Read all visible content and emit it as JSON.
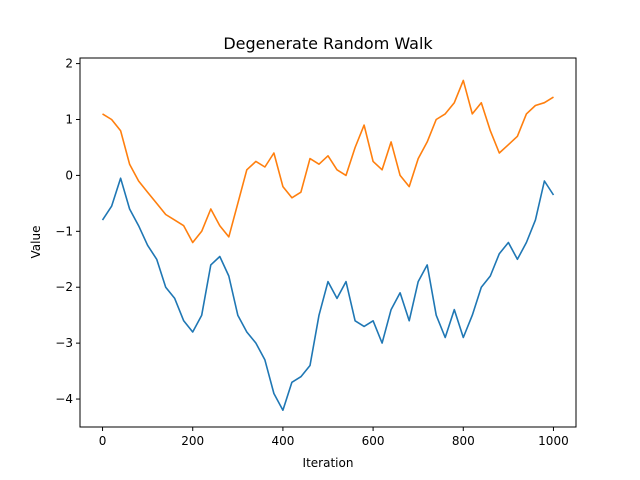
{
  "chart_data": {
    "type": "line",
    "title": "Degenerate Random Walk",
    "xlabel": "Iteration",
    "ylabel": "Value",
    "xlim": [
      -50,
      1050
    ],
    "ylim": [
      -4.5,
      2.1
    ],
    "xticks": [
      0,
      200,
      400,
      600,
      800,
      1000
    ],
    "xtick_labels": [
      "0",
      "200",
      "400",
      "600",
      "800",
      "1000"
    ],
    "yticks": [
      -4,
      -3,
      -2,
      -1,
      0,
      1,
      2
    ],
    "ytick_labels": [
      "−4",
      "−3",
      "−2",
      "−1",
      "0",
      "1",
      "2"
    ],
    "grid": false,
    "legend": "none",
    "series": [
      {
        "color": "#1f77b4",
        "x": [
          0,
          20,
          40,
          60,
          80,
          100,
          120,
          140,
          160,
          180,
          200,
          220,
          240,
          260,
          280,
          300,
          320,
          340,
          360,
          380,
          400,
          420,
          440,
          460,
          480,
          500,
          520,
          540,
          560,
          580,
          600,
          620,
          640,
          660,
          680,
          700,
          720,
          740,
          760,
          780,
          800,
          820,
          840,
          860,
          880,
          900,
          920,
          940,
          960,
          980,
          1000
        ],
        "y": [
          -0.8,
          -0.55,
          -0.05,
          -0.6,
          -0.9,
          -1.25,
          -1.5,
          -2.0,
          -2.2,
          -2.6,
          -2.8,
          -2.5,
          -1.6,
          -1.45,
          -1.8,
          -2.5,
          -2.8,
          -3.0,
          -3.3,
          -3.9,
          -4.2,
          -3.7,
          -3.6,
          -3.4,
          -2.5,
          -1.9,
          -2.2,
          -1.9,
          -2.6,
          -2.7,
          -2.6,
          -3.0,
          -2.4,
          -2.1,
          -2.6,
          -1.9,
          -1.6,
          -2.5,
          -2.9,
          -2.4,
          -2.9,
          -2.5,
          -2.0,
          -1.8,
          -1.4,
          -1.2,
          -1.5,
          -1.2,
          -0.8,
          -0.1,
          -0.35
        ]
      },
      {
        "color": "#ff7f0e",
        "x": [
          0,
          20,
          40,
          60,
          80,
          100,
          120,
          140,
          160,
          180,
          200,
          220,
          240,
          260,
          280,
          300,
          320,
          340,
          360,
          380,
          400,
          420,
          440,
          460,
          480,
          500,
          520,
          540,
          560,
          580,
          600,
          620,
          640,
          660,
          680,
          700,
          720,
          740,
          760,
          780,
          800,
          820,
          840,
          860,
          880,
          900,
          920,
          940,
          960,
          980,
          1000
        ],
        "y": [
          1.1,
          1.0,
          0.8,
          0.2,
          -0.1,
          -0.3,
          -0.5,
          -0.7,
          -0.8,
          -0.9,
          -1.2,
          -1.0,
          -0.6,
          -0.9,
          -1.1,
          -0.5,
          0.1,
          0.25,
          0.15,
          0.4,
          -0.2,
          -0.4,
          -0.3,
          0.3,
          0.2,
          0.35,
          0.1,
          0.0,
          0.5,
          0.9,
          0.25,
          0.1,
          0.6,
          0.0,
          -0.2,
          0.3,
          0.6,
          1.0,
          1.1,
          1.3,
          1.7,
          1.1,
          1.3,
          0.8,
          0.4,
          0.55,
          0.7,
          1.1,
          1.25,
          1.3,
          1.4
        ]
      }
    ]
  }
}
